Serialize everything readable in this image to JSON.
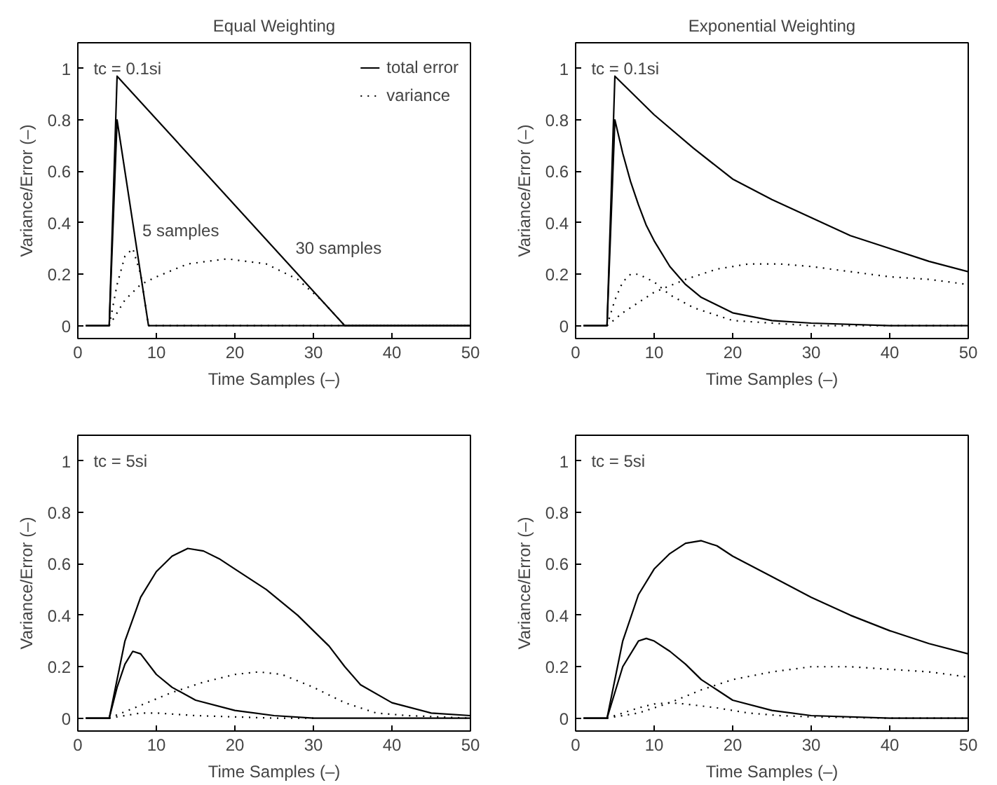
{
  "chart_data": [
    {
      "type": "line",
      "title": "Equal Weighting",
      "xlabel": "Time Samples (–)",
      "ylabel": "Variance/Error (–)",
      "xlim": [
        0,
        50
      ],
      "ylim": [
        -0.05,
        1.1
      ],
      "xticks": [
        0,
        10,
        20,
        30,
        40,
        50
      ],
      "yticks": [
        0,
        0.2,
        0.4,
        0.6,
        0.8,
        1
      ],
      "grid": false,
      "legend": "top right",
      "annotations": [
        "tc = 0.1si",
        {
          "text": "5 samples",
          "x": 7.5,
          "y": 0.3
        },
        {
          "text": "30 samples",
          "x": 27,
          "y": 0.23
        }
      ],
      "series": [
        {
          "color": "#000000",
          "line_style": "solid",
          "x": [
            1,
            4,
            5,
            9,
            50
          ],
          "values": [
            0,
            0,
            0.8,
            0,
            0
          ]
        },
        {
          "name": "total error",
          "color": "#000000",
          "line_style": "solid",
          "x": [
            1,
            4,
            5,
            34,
            50
          ],
          "values": [
            0,
            0,
            0.97,
            0,
            0
          ]
        },
        {
          "color": "#000000",
          "line_style": "dotted",
          "x": [
            4,
            5,
            6,
            7,
            8,
            9,
            50
          ],
          "values": [
            0,
            0.16,
            0.27,
            0.3,
            0.2,
            0,
            0
          ]
        },
        {
          "name": "variance",
          "color": "#000000",
          "line_style": "dotted",
          "x": [
            4,
            6,
            8,
            10,
            14,
            19,
            24,
            28,
            31,
            34,
            50
          ],
          "values": [
            0,
            0.1,
            0.16,
            0.19,
            0.24,
            0.26,
            0.24,
            0.18,
            0.1,
            0,
            0
          ]
        }
      ]
    },
    {
      "type": "line",
      "title": "Exponential Weighting",
      "xlabel": "Time Samples (–)",
      "ylabel": "Variance/Error (–)",
      "xlim": [
        0,
        50
      ],
      "ylim": [
        -0.05,
        1.1
      ],
      "xticks": [
        0,
        10,
        20,
        30,
        40,
        50
      ],
      "yticks": [
        0,
        0.2,
        0.4,
        0.6,
        0.8,
        1
      ],
      "grid": false,
      "annotations": [
        "tc = 0.1si"
      ],
      "series": [
        {
          "color": "#000000",
          "line_style": "solid",
          "x": [
            1,
            4,
            5,
            6,
            7,
            8,
            9,
            10,
            12,
            14,
            16,
            18,
            20,
            25,
            30,
            40,
            50
          ],
          "values": [
            0,
            0,
            0.8,
            0.67,
            0.56,
            0.47,
            0.39,
            0.33,
            0.23,
            0.16,
            0.11,
            0.08,
            0.05,
            0.02,
            0.01,
            0,
            0
          ]
        },
        {
          "color": "#000000",
          "line_style": "solid",
          "x": [
            1,
            4,
            5,
            10,
            15,
            20,
            25,
            30,
            35,
            40,
            45,
            50
          ],
          "values": [
            0,
            0,
            0.97,
            0.82,
            0.69,
            0.57,
            0.49,
            0.42,
            0.35,
            0.3,
            0.25,
            0.21
          ]
        },
        {
          "color": "#000000",
          "line_style": "dotted",
          "x": [
            4,
            5,
            6,
            7,
            8,
            10,
            12,
            15,
            20,
            25,
            30,
            50
          ],
          "values": [
            0,
            0.1,
            0.17,
            0.2,
            0.2,
            0.17,
            0.12,
            0.07,
            0.02,
            0.01,
            0,
            0
          ]
        },
        {
          "color": "#000000",
          "line_style": "dotted",
          "x": [
            4,
            6,
            8,
            10,
            14,
            18,
            22,
            26,
            30,
            35,
            40,
            45,
            50
          ],
          "values": [
            0,
            0.05,
            0.09,
            0.13,
            0.18,
            0.22,
            0.24,
            0.24,
            0.23,
            0.21,
            0.19,
            0.18,
            0.16
          ]
        }
      ]
    },
    {
      "type": "line",
      "xlabel": "Time Samples (–)",
      "ylabel": "Variance/Error (–)",
      "xlim": [
        0,
        50
      ],
      "ylim": [
        -0.05,
        1.1
      ],
      "xticks": [
        0,
        10,
        20,
        30,
        40,
        50
      ],
      "yticks": [
        0,
        0.2,
        0.4,
        0.6,
        0.8,
        1
      ],
      "grid": false,
      "annotations": [
        "tc = 5si"
      ],
      "series": [
        {
          "color": "#000000",
          "line_style": "solid",
          "x": [
            1,
            4,
            5,
            6,
            7,
            8,
            10,
            12,
            15,
            20,
            25,
            30,
            50
          ],
          "values": [
            0,
            0,
            0.12,
            0.21,
            0.26,
            0.25,
            0.17,
            0.12,
            0.07,
            0.03,
            0.01,
            0,
            0
          ]
        },
        {
          "color": "#000000",
          "line_style": "solid",
          "x": [
            1,
            4,
            6,
            8,
            10,
            12,
            14,
            16,
            18,
            20,
            24,
            28,
            32,
            34,
            36,
            40,
            45,
            50
          ],
          "values": [
            0,
            0,
            0.3,
            0.47,
            0.57,
            0.63,
            0.66,
            0.65,
            0.62,
            0.58,
            0.5,
            0.4,
            0.28,
            0.2,
            0.13,
            0.06,
            0.02,
            0.01
          ]
        },
        {
          "color": "#000000",
          "line_style": "dotted",
          "x": [
            4,
            6,
            8,
            10,
            15,
            20,
            25,
            30
          ],
          "values": [
            0,
            0.01,
            0.02,
            0.02,
            0.01,
            0.005,
            0,
            0
          ]
        },
        {
          "color": "#000000",
          "line_style": "dotted",
          "x": [
            4,
            8,
            12,
            16,
            20,
            23,
            26,
            30,
            34,
            38,
            42,
            50
          ],
          "values": [
            0,
            0.05,
            0.1,
            0.14,
            0.17,
            0.18,
            0.17,
            0.12,
            0.06,
            0.02,
            0.01,
            0
          ]
        }
      ]
    },
    {
      "type": "line",
      "xlabel": "Time Samples (–)",
      "ylabel": "Variance/Error (–)",
      "xlim": [
        0,
        50
      ],
      "ylim": [
        -0.05,
        1.1
      ],
      "xticks": [
        0,
        10,
        20,
        30,
        40,
        50
      ],
      "yticks": [
        0,
        0.2,
        0.4,
        0.6,
        0.8,
        1
      ],
      "grid": false,
      "annotations": [
        "tc = 5si"
      ],
      "series": [
        {
          "color": "#000000",
          "line_style": "solid",
          "x": [
            1,
            4,
            6,
            8,
            9,
            10,
            12,
            14,
            16,
            18,
            20,
            25,
            30,
            40,
            50
          ],
          "values": [
            0,
            0,
            0.2,
            0.3,
            0.31,
            0.3,
            0.26,
            0.21,
            0.15,
            0.11,
            0.07,
            0.03,
            0.01,
            0,
            0
          ]
        },
        {
          "color": "#000000",
          "line_style": "solid",
          "x": [
            1,
            4,
            6,
            8,
            10,
            12,
            14,
            16,
            18,
            20,
            25,
            30,
            35,
            40,
            45,
            50
          ],
          "values": [
            0,
            0,
            0.3,
            0.48,
            0.58,
            0.64,
            0.68,
            0.69,
            0.67,
            0.63,
            0.55,
            0.47,
            0.4,
            0.34,
            0.29,
            0.25
          ]
        },
        {
          "color": "#000000",
          "line_style": "dotted",
          "x": [
            4,
            6,
            8,
            10,
            12,
            14,
            18,
            22,
            26,
            30,
            40,
            50
          ],
          "values": [
            0,
            0.02,
            0.04,
            0.055,
            0.06,
            0.055,
            0.04,
            0.02,
            0.01,
            0.005,
            0,
            0
          ]
        },
        {
          "color": "#000000",
          "line_style": "dotted",
          "x": [
            4,
            8,
            12,
            16,
            20,
            25,
            30,
            35,
            40,
            45,
            50
          ],
          "values": [
            0,
            0.02,
            0.06,
            0.11,
            0.15,
            0.18,
            0.2,
            0.2,
            0.19,
            0.18,
            0.16
          ]
        }
      ]
    }
  ]
}
